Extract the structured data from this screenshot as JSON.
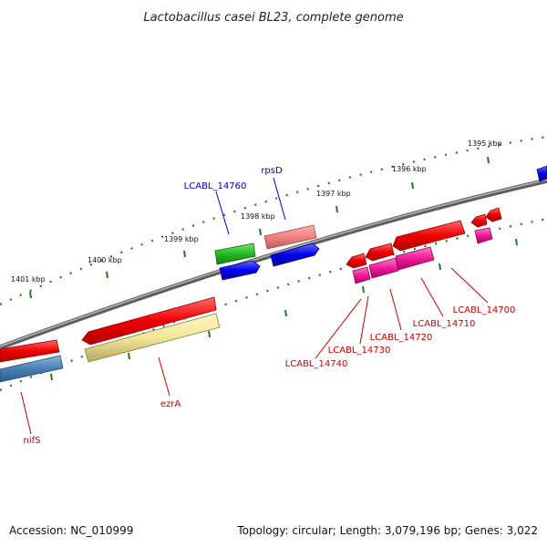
{
  "title": "Lactobacillus casei BL23, complete genome",
  "footer": {
    "accession": "Accession: NC_010999",
    "info": "Topology: circular; Length: 3,079,196 bp; Genes: 3,022"
  },
  "ticks": [
    "1395 kbp",
    "1396 kbp",
    "1397 kbp",
    "1398 kbp",
    "1399 kbp",
    "1400 kbp",
    "1401 kbp"
  ],
  "colors": {
    "backbone": "#777777",
    "tick": "#1e7a1e",
    "label_blue": "#0000cc",
    "label_red": "#cc0000"
  },
  "gene_labels": [
    {
      "name": "rpsD",
      "color": "#0000cc"
    },
    {
      "name": "LCABL_14760",
      "color": "#0000cc"
    },
    {
      "name": "LCABL_14700",
      "color": "#cc0000"
    },
    {
      "name": "LCABL_14710",
      "color": "#cc0000"
    },
    {
      "name": "LCABL_14720",
      "color": "#cc0000"
    },
    {
      "name": "LCABL_14730",
      "color": "#cc0000"
    },
    {
      "name": "LCABL_14740",
      "color": "#cc0000"
    },
    {
      "name": "ezrA",
      "color": "#cc0000"
    },
    {
      "name": "nifS",
      "color": "#cc0000"
    }
  ]
}
